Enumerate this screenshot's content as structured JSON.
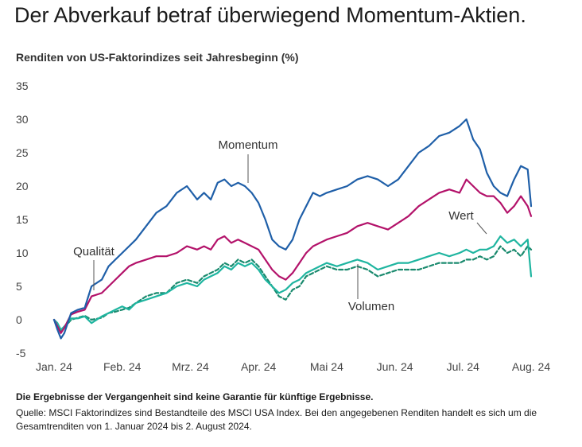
{
  "title": "Der Abverkauf betraf überwiegend Momentum-Aktien.",
  "subtitle": "Renditen von US-Faktorindizes seit Jahresbeginn (%)",
  "footer": {
    "disclaimer": "Die Ergebnisse der Vergangenheit sind keine Garantie für künftige Ergebnisse.",
    "source": "Quelle: MSCI Faktorindizes sind Bestandteile des MSCI USA Index. Bei den angegebenen Renditen handelt es sich um die Gesamtrenditen von 1. Januar 2024 bis 2. August 2024."
  },
  "chart_data": {
    "type": "line",
    "title": "Der Abverkauf betraf überwiegend Momentum-Aktien.",
    "ylabel": "Renditen von US-Faktorindizes seit Jahresbeginn (%)",
    "xlabel": "",
    "ylim": [
      -5,
      35
    ],
    "yticks": [
      35,
      30,
      25,
      20,
      15,
      10,
      5,
      0,
      -5
    ],
    "xticks": [
      {
        "label": "Jan. 24",
        "t": 0
      },
      {
        "label": "Feb. 24",
        "t": 1
      },
      {
        "label": "Mrz. 24",
        "t": 2
      },
      {
        "label": "Apr. 24",
        "t": 3
      },
      {
        "label": "Mai 24",
        "t": 4
      },
      {
        "label": "Jun. 24",
        "t": 5
      },
      {
        "label": "Jul. 24",
        "t": 6
      },
      {
        "label": "Aug. 24",
        "t": 7
      }
    ],
    "grid": false,
    "series": [
      {
        "name": "Momentum",
        "color": "#1f5fa8",
        "dash": false,
        "x": [
          0,
          0.05,
          0.1,
          0.15,
          0.25,
          0.35,
          0.45,
          0.55,
          0.7,
          0.8,
          0.9,
          1.0,
          1.1,
          1.2,
          1.35,
          1.5,
          1.65,
          1.8,
          1.95,
          2.1,
          2.2,
          2.3,
          2.4,
          2.5,
          2.6,
          2.7,
          2.8,
          2.9,
          3.0,
          3.1,
          3.2,
          3.3,
          3.4,
          3.5,
          3.6,
          3.7,
          3.8,
          3.9,
          4.0,
          4.15,
          4.3,
          4.45,
          4.6,
          4.75,
          4.9,
          5.05,
          5.2,
          5.35,
          5.5,
          5.65,
          5.8,
          5.95,
          6.05,
          6.15,
          6.25,
          6.35,
          6.45,
          6.55,
          6.65,
          6.75,
          6.85,
          6.95,
          7.0
        ],
        "values": [
          0,
          -1.5,
          -2.8,
          -2,
          1,
          1.5,
          1.8,
          5,
          6,
          8,
          9,
          10,
          11,
          12,
          14,
          16,
          17,
          19,
          20,
          18,
          19,
          18,
          20.5,
          21,
          20,
          20.5,
          20,
          19,
          17.5,
          15,
          12,
          11,
          10.5,
          12,
          15,
          17,
          19,
          18.5,
          19,
          19.5,
          20,
          21,
          21.5,
          21,
          20,
          21,
          23,
          25,
          26,
          27.5,
          28,
          29,
          30,
          27,
          25.5,
          22,
          20,
          19,
          18.5,
          21,
          23,
          22.5,
          17
        ]
      },
      {
        "name": "Qualität",
        "color": "#b3126a",
        "dash": false,
        "x": [
          0,
          0.05,
          0.1,
          0.15,
          0.25,
          0.35,
          0.45,
          0.55,
          0.7,
          0.8,
          0.9,
          1.0,
          1.1,
          1.2,
          1.35,
          1.5,
          1.65,
          1.8,
          1.95,
          2.1,
          2.2,
          2.3,
          2.4,
          2.5,
          2.6,
          2.7,
          2.8,
          2.9,
          3.0,
          3.1,
          3.2,
          3.3,
          3.4,
          3.5,
          3.6,
          3.7,
          3.8,
          3.9,
          4.0,
          4.15,
          4.3,
          4.45,
          4.6,
          4.75,
          4.9,
          5.05,
          5.2,
          5.35,
          5.5,
          5.65,
          5.8,
          5.95,
          6.05,
          6.15,
          6.25,
          6.35,
          6.45,
          6.55,
          6.65,
          6.75,
          6.85,
          6.95,
          7.0
        ],
        "values": [
          0,
          -1,
          -2,
          -1.2,
          0.8,
          1.2,
          1.5,
          3.5,
          4,
          5,
          6,
          7,
          8,
          8.5,
          9,
          9.5,
          9.5,
          10,
          11,
          10.5,
          11,
          10.5,
          12,
          12.5,
          11.5,
          12,
          11.5,
          11,
          10.5,
          9,
          7.5,
          6.5,
          6,
          7,
          8.5,
          10,
          11,
          11.5,
          12,
          12.5,
          13,
          14,
          14.5,
          14,
          13.5,
          14.5,
          15.5,
          17,
          18,
          19,
          19.5,
          19,
          21,
          20,
          19,
          18.5,
          18.5,
          17.5,
          16,
          17,
          18.5,
          17,
          15.5
        ]
      },
      {
        "name": "Wert",
        "color": "#1fb5a0",
        "dash": false,
        "x": [
          0,
          0.05,
          0.1,
          0.15,
          0.25,
          0.35,
          0.45,
          0.55,
          0.7,
          0.8,
          0.9,
          1.0,
          1.1,
          1.2,
          1.35,
          1.5,
          1.65,
          1.8,
          1.95,
          2.1,
          2.2,
          2.3,
          2.4,
          2.5,
          2.6,
          2.7,
          2.8,
          2.9,
          3.0,
          3.1,
          3.2,
          3.3,
          3.4,
          3.5,
          3.6,
          3.7,
          3.8,
          3.9,
          4.0,
          4.15,
          4.3,
          4.45,
          4.6,
          4.75,
          4.9,
          5.05,
          5.2,
          5.35,
          5.5,
          5.65,
          5.8,
          5.95,
          6.05,
          6.15,
          6.25,
          6.35,
          6.45,
          6.55,
          6.65,
          6.75,
          6.85,
          6.95,
          7.0
        ],
        "values": [
          0,
          -0.5,
          -1.5,
          -1,
          0.2,
          0.2,
          0.5,
          -0.5,
          0.5,
          1,
          1.5,
          2,
          1.5,
          2.5,
          3,
          3.5,
          4,
          5,
          5.5,
          5,
          6,
          6.5,
          7,
          8,
          7.5,
          8.5,
          8,
          8.5,
          7.5,
          6,
          5,
          4,
          4.5,
          5.5,
          6,
          7,
          7.5,
          8,
          8.5,
          8,
          8.5,
          9,
          8.5,
          7.5,
          8,
          8.5,
          8.5,
          9,
          9.5,
          10,
          9.5,
          10,
          10.5,
          10,
          10.5,
          10.5,
          11,
          12.5,
          11.5,
          12,
          11,
          12,
          6.5
        ]
      },
      {
        "name": "Volumen",
        "color": "#1a8a6e",
        "dash": true,
        "x": [
          0,
          0.05,
          0.1,
          0.15,
          0.25,
          0.35,
          0.45,
          0.55,
          0.7,
          0.8,
          0.9,
          1.0,
          1.1,
          1.2,
          1.35,
          1.5,
          1.65,
          1.8,
          1.95,
          2.1,
          2.2,
          2.3,
          2.4,
          2.5,
          2.6,
          2.7,
          2.8,
          2.9,
          3.0,
          3.1,
          3.2,
          3.3,
          3.4,
          3.5,
          3.6,
          3.7,
          3.8,
          3.9,
          4.0,
          4.15,
          4.3,
          4.45,
          4.6,
          4.75,
          4.9,
          5.05,
          5.2,
          5.35,
          5.5,
          5.65,
          5.8,
          5.95,
          6.05,
          6.15,
          6.25,
          6.35,
          6.45,
          6.55,
          6.65,
          6.75,
          6.85,
          6.95,
          7.0
        ],
        "values": [
          0,
          -0.8,
          -1.8,
          -1.2,
          0,
          0.3,
          0.6,
          0,
          0.3,
          1,
          1.2,
          1.5,
          1.8,
          2.5,
          3.5,
          4,
          4,
          5.5,
          6,
          5.5,
          6.5,
          7,
          7.5,
          8.5,
          8,
          9,
          8.5,
          9,
          8,
          6.5,
          5,
          3.5,
          3,
          4.5,
          5,
          6.5,
          7,
          7.5,
          8,
          7.5,
          7.5,
          8,
          7.5,
          6.5,
          7,
          7.5,
          7.5,
          7.5,
          8,
          8.5,
          8.5,
          8.5,
          9,
          9,
          9.5,
          9,
          9.5,
          11,
          10,
          10.5,
          9.5,
          11,
          10.5
        ]
      }
    ],
    "annotations": [
      {
        "text": "Momentum",
        "target_t": 3.0,
        "target_value": 20.5
      },
      {
        "text": "Qualität",
        "target_t": 0.6,
        "target_value": 5
      },
      {
        "text": "Wert",
        "target_t": 6.85,
        "target_value": 13
      },
      {
        "text": "Volumen",
        "target_t": 4.8,
        "target_value": 7.5
      }
    ]
  }
}
